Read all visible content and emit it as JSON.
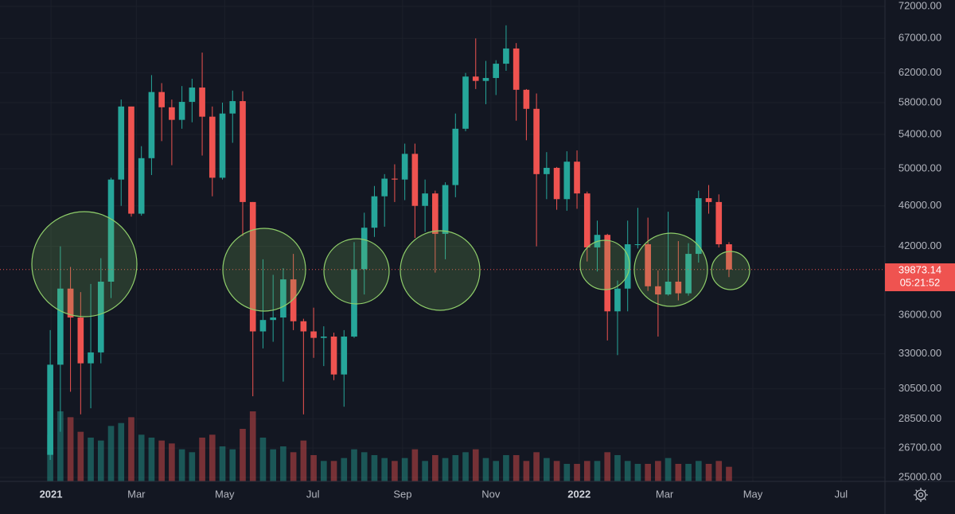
{
  "chart_data": {
    "type": "candlestick",
    "log_scale": true,
    "grid": true,
    "up_color": "#26a69a",
    "down_color": "#ef5350",
    "ylim": [
      25000,
      72000
    ],
    "yticks": [
      {
        "value": 72000,
        "label": "72000.00"
      },
      {
        "value": 67000,
        "label": "67000.00"
      },
      {
        "value": 62000,
        "label": "62000.00"
      },
      {
        "value": 58000,
        "label": "58000.00"
      },
      {
        "value": 54000,
        "label": "54000.00"
      },
      {
        "value": 50000,
        "label": "50000.00"
      },
      {
        "value": 46000,
        "label": "46000.00"
      },
      {
        "value": 42000,
        "label": "42000.00"
      },
      {
        "value": 36000,
        "label": "36000.00"
      },
      {
        "value": 33000,
        "label": "33000.00"
      },
      {
        "value": 30500,
        "label": "30500.00"
      },
      {
        "value": 28500,
        "label": "28500.00"
      },
      {
        "value": 26700,
        "label": "26700.00"
      },
      {
        "value": 25000,
        "label": "25000.00"
      }
    ],
    "xlim": [
      -4.46,
      82.9
    ],
    "xticks": [
      {
        "value": 0.571,
        "label": "2021"
      },
      {
        "value": 9,
        "label": "Mar"
      },
      {
        "value": 17.714,
        "label": "May"
      },
      {
        "value": 26.429,
        "label": "Jul"
      },
      {
        "value": 35.286,
        "label": "Sep"
      },
      {
        "value": 44,
        "label": "Nov"
      },
      {
        "value": 52.714,
        "label": "2022"
      },
      {
        "value": 61.143,
        "label": "Mar"
      },
      {
        "value": 69.857,
        "label": "May"
      },
      {
        "value": 78.571,
        "label": "Jul"
      }
    ],
    "open": [
      26300,
      32200,
      38200,
      35800,
      32300,
      33100,
      38800,
      48800,
      57500,
      45200,
      51200,
      59400,
      57400,
      55800,
      58100,
      60000,
      56200,
      49000,
      56600,
      58200,
      46400,
      34700,
      35600,
      35800,
      39000,
      35500,
      34700,
      34200,
      34300,
      31500,
      34300,
      39900,
      43800,
      47000,
      48900,
      48800,
      51700,
      46000,
      47300,
      43200,
      48200,
      54700,
      61500,
      60900,
      61300,
      63300,
      65500,
      59700,
      57200,
      49400,
      50100,
      46700,
      50800,
      47300,
      41900,
      43100,
      36300,
      38200,
      42200,
      42200,
      38400,
      37700,
      38800,
      37800,
      41300,
      46800,
      46400,
      42200
    ],
    "high": [
      34800,
      42000,
      40100,
      37900,
      38600,
      40900,
      49000,
      58400,
      57500,
      52600,
      61700,
      60600,
      58400,
      60200,
      61200,
      64900,
      57500,
      58000,
      59600,
      59500,
      46400,
      40800,
      39400,
      40000,
      41300,
      35700,
      36600,
      35100,
      34600,
      34800,
      42400,
      45300,
      48100,
      49400,
      50500,
      52900,
      52900,
      48800,
      47600,
      48500,
      56600,
      62000,
      67000,
      63700,
      63800,
      69000,
      66300,
      59800,
      59200,
      51900,
      50200,
      52000,
      52100,
      47500,
      44500,
      43200,
      38900,
      44500,
      45800,
      44800,
      39800,
      45400,
      42500,
      42300,
      47600,
      48200,
      47200,
      42400
    ],
    "low": [
      26000,
      27700,
      30300,
      28800,
      29200,
      32300,
      37400,
      46000,
      44900,
      45000,
      49300,
      53200,
      50400,
      54700,
      55500,
      51500,
      47000,
      48800,
      53000,
      43000,
      30000,
      33400,
      33900,
      31000,
      34800,
      28800,
      32700,
      32100,
      31100,
      29300,
      34200,
      37700,
      42900,
      43900,
      46400,
      46600,
      42800,
      43400,
      39600,
      40800,
      46900,
      54400,
      59800,
      57800,
      59000,
      62300,
      55700,
      53300,
      42000,
      46700,
      45600,
      45500,
      45700,
      40600,
      39700,
      34000,
      32900,
      36300,
      41800,
      38000,
      34300,
      37600,
      37200,
      37600,
      40500,
      45200,
      41900,
      39200
    ],
    "close": [
      32200,
      38200,
      35800,
      32300,
      33100,
      38800,
      48800,
      57500,
      45200,
      51200,
      59400,
      57400,
      55800,
      58100,
      60000,
      56200,
      49000,
      56600,
      58200,
      46400,
      34700,
      35600,
      35800,
      39000,
      35500,
      34700,
      34200,
      34300,
      31500,
      34300,
      39900,
      43800,
      47000,
      48900,
      48800,
      51700,
      46000,
      47300,
      43200,
      48200,
      54700,
      61500,
      60900,
      61300,
      63300,
      65500,
      59700,
      57200,
      49400,
      50100,
      46700,
      50800,
      47300,
      41900,
      43100,
      36300,
      38200,
      42200,
      42200,
      38400,
      37700,
      38800,
      37800,
      41300,
      46800,
      46400,
      42200,
      39873.14
    ],
    "volume": [
      80,
      120,
      110,
      85,
      75,
      70,
      95,
      100,
      110,
      80,
      75,
      70,
      65,
      55,
      50,
      75,
      80,
      60,
      55,
      90,
      120,
      75,
      55,
      60,
      50,
      70,
      45,
      35,
      35,
      40,
      55,
      50,
      45,
      40,
      35,
      40,
      55,
      35,
      45,
      40,
      45,
      50,
      55,
      40,
      35,
      45,
      45,
      35,
      50,
      40,
      35,
      30,
      30,
      35,
      35,
      50,
      45,
      35,
      30,
      30,
      35,
      40,
      30,
      30,
      35,
      30,
      35,
      25
    ],
    "last_price": 39873.14,
    "countdown": "05:21:52"
  }
}
